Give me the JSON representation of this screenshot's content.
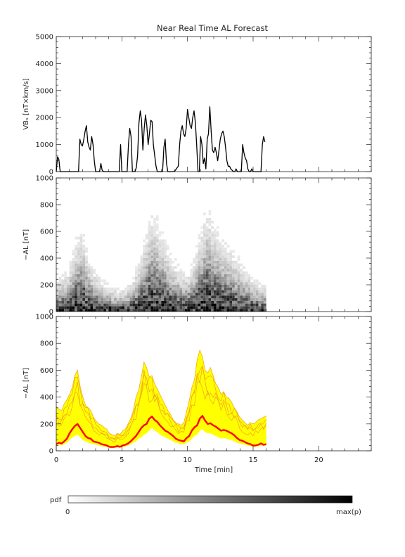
{
  "title": "Near Real Time AL Forecast",
  "panels": {
    "vbs": {
      "ylabel": "VBₛ [nT×km/s]",
      "ylim": [
        0,
        5000
      ],
      "yticks": [
        "0",
        "1000",
        "2000",
        "3000",
        "4000",
        "5000"
      ]
    },
    "pdf": {
      "ylabel": "−AL [nT]",
      "ylim": [
        0,
        1000
      ],
      "yticks": [
        "0",
        "200",
        "400",
        "600",
        "800",
        "1000"
      ]
    },
    "fcst": {
      "ylabel": "−AL [nT]",
      "ylim": [
        0,
        1000
      ],
      "yticks": [
        "0",
        "200",
        "400",
        "600",
        "800",
        "1000"
      ]
    }
  },
  "xaxis": {
    "label": "Time [min]",
    "xlim": [
      0,
      24
    ],
    "ticks": [
      "0",
      "5",
      "10",
      "15",
      "20"
    ]
  },
  "colorbar": {
    "label": "pdf",
    "min_label": "0",
    "max_label": "max(p)"
  },
  "colors": {
    "axis": "#222222",
    "vbs_line": "#000000",
    "ensemble_spread": "#ffff00",
    "ensemble_member": "#f0a020",
    "median_line": "#ff0000"
  },
  "chart_data": [
    {
      "type": "line",
      "panel": "top",
      "ylabel": "VBₛ [nT×km/s]",
      "xlim": [
        0,
        24
      ],
      "ylim": [
        0,
        5000
      ],
      "series": [
        {
          "x": [
            0.0,
            0.1,
            0.2,
            0.3,
            1.7,
            1.8,
            1.9,
            2.0,
            2.1,
            2.2,
            2.3,
            2.4,
            2.5,
            2.6,
            2.7,
            2.8,
            2.9,
            3.0,
            3.3,
            3.4,
            3.5,
            3.6,
            4.8,
            4.9,
            5.0,
            5.4,
            5.5,
            5.6,
            5.7,
            5.8,
            6.0,
            6.1,
            6.2,
            6.3,
            6.4,
            6.5,
            6.6,
            6.7,
            6.8,
            6.9,
            7.0,
            7.1,
            7.2,
            7.3,
            7.4,
            7.5,
            7.6,
            7.7,
            7.8,
            8.1,
            8.2,
            8.3,
            8.4,
            8.5,
            8.6,
            8.9,
            9.0,
            9.3,
            9.4,
            9.5,
            9.6,
            9.7,
            9.8,
            9.9,
            10.0,
            10.1,
            10.2,
            10.3,
            10.4,
            10.5,
            10.6,
            10.7,
            10.8,
            10.9,
            11.0,
            11.1,
            11.2,
            11.3,
            11.4,
            11.5,
            11.6,
            11.7,
            11.8,
            11.9,
            12.0,
            12.1,
            12.2,
            12.3,
            12.4,
            12.5,
            12.6,
            12.7,
            12.8,
            12.9,
            13.0,
            13.1,
            13.2,
            13.3,
            13.5,
            13.6,
            13.7,
            13.8,
            14.0,
            14.1,
            14.2,
            14.3,
            14.4,
            14.5,
            14.6,
            14.7,
            14.8,
            14.9,
            15.0,
            15.1,
            15.2,
            15.3,
            15.5,
            15.6,
            15.7,
            15.8,
            15.9
          ],
          "y": [
            0,
            550,
            450,
            0,
            0,
            1200,
            1000,
            950,
            1200,
            1500,
            1700,
            1100,
            900,
            800,
            1300,
            1000,
            400,
            0,
            0,
            300,
            50,
            0,
            0,
            1000,
            0,
            0,
            1000,
            1600,
            1300,
            0,
            0,
            150,
            600,
            1800,
            2250,
            1900,
            800,
            1600,
            2100,
            1700,
            1000,
            1400,
            1900,
            1850,
            1000,
            600,
            200,
            0,
            0,
            0,
            900,
            1200,
            300,
            0,
            0,
            0,
            0,
            200,
            1000,
            1500,
            1700,
            1400,
            1300,
            1600,
            2300,
            2000,
            1700,
            1600,
            2000,
            2250,
            1800,
            1000,
            0,
            0,
            1300,
            1000,
            300,
            500,
            100,
            1200,
            1400,
            2400,
            1500,
            800,
            700,
            900,
            700,
            400,
            800,
            1200,
            1400,
            1500,
            1300,
            900,
            400,
            200,
            200,
            100,
            0,
            0,
            100,
            0,
            0,
            0,
            1000,
            700,
            500,
            400,
            100,
            0,
            0,
            100,
            0,
            0,
            0,
            0,
            0,
            0,
            1000,
            1300,
            1100
          ]
        }
      ]
    },
    {
      "type": "heatmap",
      "panel": "middle",
      "ylabel": "−AL [nT]",
      "xlim": [
        0,
        24
      ],
      "ylim": [
        0,
        1000
      ],
      "x_extent": [
        0,
        16
      ],
      "cell_width_min": 0.2,
      "cell_height_nT": 20,
      "profile_centers": [
        60,
        70,
        75,
        80,
        90,
        115,
        140,
        170,
        190,
        200,
        185,
        150,
        120,
        100,
        90,
        80,
        70,
        60,
        55,
        50,
        45,
        40,
        40,
        35,
        35,
        40,
        40,
        50,
        60,
        70,
        90,
        110,
        140,
        170,
        200,
        230,
        250,
        240,
        230,
        210,
        190,
        170,
        150,
        130,
        120,
        110,
        100,
        90,
        85,
        80,
        90,
        100,
        120,
        150,
        180,
        210,
        240,
        260,
        250,
        230,
        210,
        200,
        190,
        180,
        170,
        160,
        150,
        140,
        130,
        120,
        110,
        100,
        90,
        80,
        70,
        60,
        60,
        50,
        50,
        50
      ],
      "colormap": "white-to-black"
    },
    {
      "type": "area",
      "panel": "bottom",
      "ylabel": "−AL [nT]",
      "xlabel": "Time [min]",
      "xlim": [
        0,
        24
      ],
      "ylim": [
        0,
        1000
      ],
      "x_extent": [
        0,
        16
      ],
      "median": [
        50,
        60,
        55,
        70,
        90,
        130,
        160,
        185,
        200,
        170,
        140,
        110,
        95,
        90,
        70,
        65,
        60,
        50,
        45,
        40,
        30,
        28,
        30,
        35,
        30,
        40,
        45,
        55,
        70,
        90,
        110,
        140,
        170,
        190,
        200,
        240,
        255,
        230,
        215,
        190,
        170,
        150,
        140,
        125,
        110,
        90,
        80,
        75,
        70,
        95,
        110,
        150,
        175,
        190,
        240,
        260,
        225,
        200,
        205,
        190,
        180,
        165,
        150,
        155,
        150,
        140,
        130,
        115,
        95,
        80,
        75,
        65,
        55,
        50,
        40,
        40,
        45,
        55,
        45,
        50
      ],
      "spread_upper": [
        330,
        310,
        300,
        350,
        380,
        420,
        470,
        560,
        600,
        480,
        400,
        340,
        320,
        300,
        250,
        220,
        200,
        190,
        175,
        160,
        130,
        120,
        110,
        130,
        120,
        150,
        160,
        200,
        240,
        300,
        400,
        450,
        550,
        660,
        620,
        550,
        560,
        500,
        460,
        420,
        380,
        340,
        300,
        270,
        230,
        210,
        200,
        190,
        210,
        290,
        370,
        470,
        530,
        680,
        750,
        700,
        600,
        580,
        620,
        560,
        500,
        470,
        420,
        440,
        400,
        390,
        360,
        320,
        290,
        250,
        230,
        210,
        190,
        210,
        200,
        210,
        230,
        240,
        250,
        260
      ],
      "spread_lower": [
        40,
        45,
        40,
        50,
        60,
        80,
        100,
        110,
        120,
        100,
        80,
        70,
        60,
        55,
        50,
        45,
        40,
        35,
        30,
        28,
        22,
        20,
        22,
        25,
        22,
        30,
        32,
        40,
        50,
        60,
        70,
        90,
        100,
        120,
        130,
        150,
        170,
        150,
        140,
        120,
        110,
        100,
        90,
        80,
        70,
        60,
        55,
        50,
        50,
        60,
        70,
        90,
        110,
        120,
        150,
        160,
        140,
        130,
        130,
        120,
        110,
        100,
        90,
        95,
        90,
        85,
        80,
        70,
        60,
        55,
        50,
        45,
        40,
        35,
        30,
        30,
        35,
        40,
        35,
        40
      ]
    }
  ]
}
